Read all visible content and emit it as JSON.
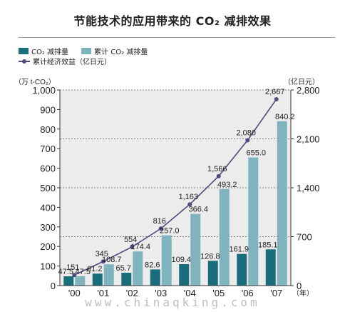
{
  "page": {
    "title": "节能技术的应用带来的 CO₂ 减排效果",
    "watermark": "www.chinaqking.com"
  },
  "legend": {
    "annual": "CO₂ 减排量",
    "cumulative": "累计 CO₂ 减排量",
    "economic": "累计经济效益（亿日元）"
  },
  "chart_data": {
    "type": "bar",
    "categories": [
      "'00",
      "'01",
      "'02",
      "'03",
      "'04",
      "'05",
      "'06",
      "'07"
    ],
    "x_unit": "（年）",
    "left_axis_unit": "（万 t-CO₂）",
    "right_axis_unit": "（亿日元）",
    "ylim": [
      0,
      1000
    ],
    "y_ticks": [
      "0",
      "100",
      "200",
      "300",
      "400",
      "500",
      "600",
      "700",
      "800",
      "900",
      "1,000"
    ],
    "y2lim": [
      0,
      2800
    ],
    "y2_ticks": [
      "0",
      "700",
      "1,400",
      "2,100",
      "2,800"
    ],
    "series": [
      {
        "name": "CO₂ 减排量",
        "values": [
          47.5,
          61.2,
          65.7,
          82.6,
          109.4,
          126.8,
          161.9,
          185.1
        ],
        "labels": [
          "47.5",
          "61.2",
          "65.7",
          "82.6",
          "109.4",
          "126.8",
          "161.9",
          "185.1"
        ],
        "color": "#1a6e7c"
      },
      {
        "name": "累计 CO₂ 减排量",
        "values": [
          47.5,
          108.7,
          174.4,
          257.0,
          366.4,
          493.2,
          655.0,
          840.2
        ],
        "labels": [
          "47.5",
          "108.7",
          "174.4",
          "257.0",
          "366.4",
          "493.2",
          "655.0",
          "840.2"
        ],
        "color": "#7fb3bd"
      },
      {
        "name": "累计经济效益（亿日元）",
        "axis": "right",
        "values": [
          151,
          345,
          554,
          816,
          1163,
          1566,
          2080,
          2667
        ],
        "labels": [
          "151",
          "345",
          "554",
          "816",
          "1,163",
          "1,566",
          "2,080",
          "2,667"
        ],
        "color": "#4c4c7e"
      }
    ],
    "grid": "dashed horizontal at right-axis ticks",
    "background_color": "#ececec"
  }
}
